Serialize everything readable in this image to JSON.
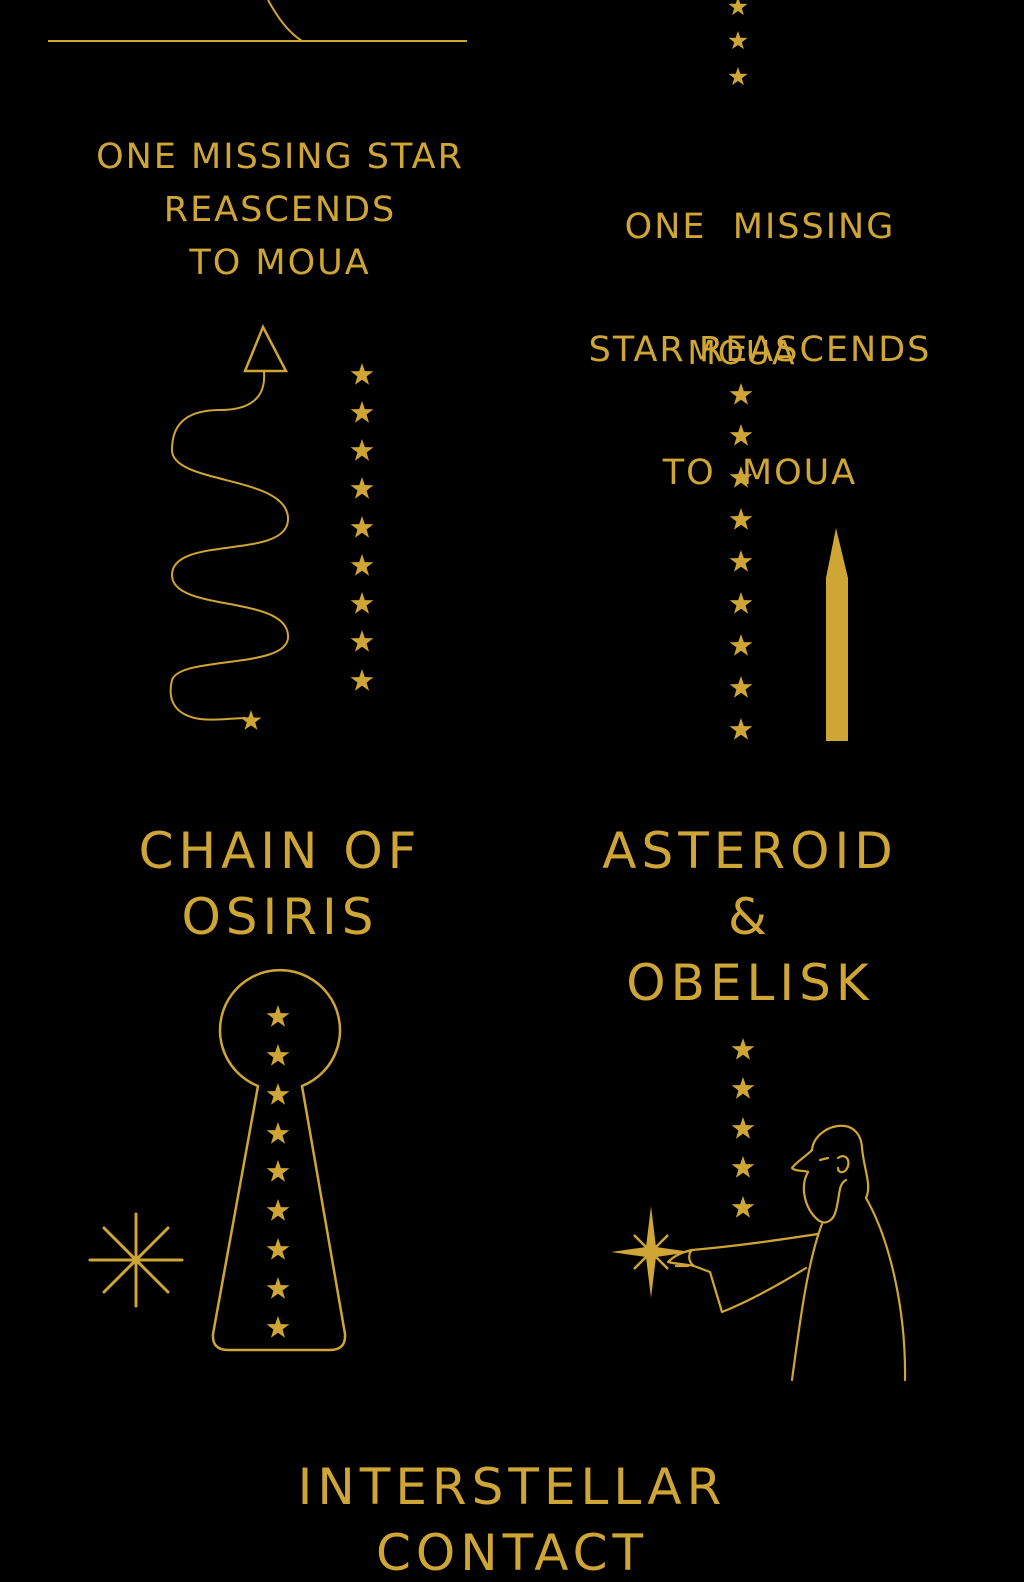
{
  "colors": {
    "background": "#000000",
    "gold": "#CFA536"
  },
  "panels": {
    "top_left": {
      "caption_lines": [
        "ONE MISSING STAR",
        "REASCENDS",
        "TO MOUA"
      ],
      "illustration": "wavy-path-triangle-icon",
      "star_column_count": 9
    },
    "top_right": {
      "caption_lines": [
        "ONE  MISSING",
        "STAR REASCENDS",
        "TO  MOUA"
      ],
      "marker_label": "MOUA",
      "illustration": "obelisk-icon",
      "star_column_count": 9
    },
    "middle_left": {
      "title_lines": [
        "CHAIN OF",
        "OSIRIS"
      ],
      "illustration": "keyhole-icon",
      "keyhole_star_count": 9
    },
    "middle_right": {
      "title_lines": [
        "ASTEROID",
        "&",
        "OBELISK"
      ],
      "illustration": "sage-pointing-figure-icon",
      "star_column_count": 5
    },
    "bottom": {
      "title_lines": [
        "INTERSTELLAR",
        "CONTACT"
      ]
    }
  }
}
